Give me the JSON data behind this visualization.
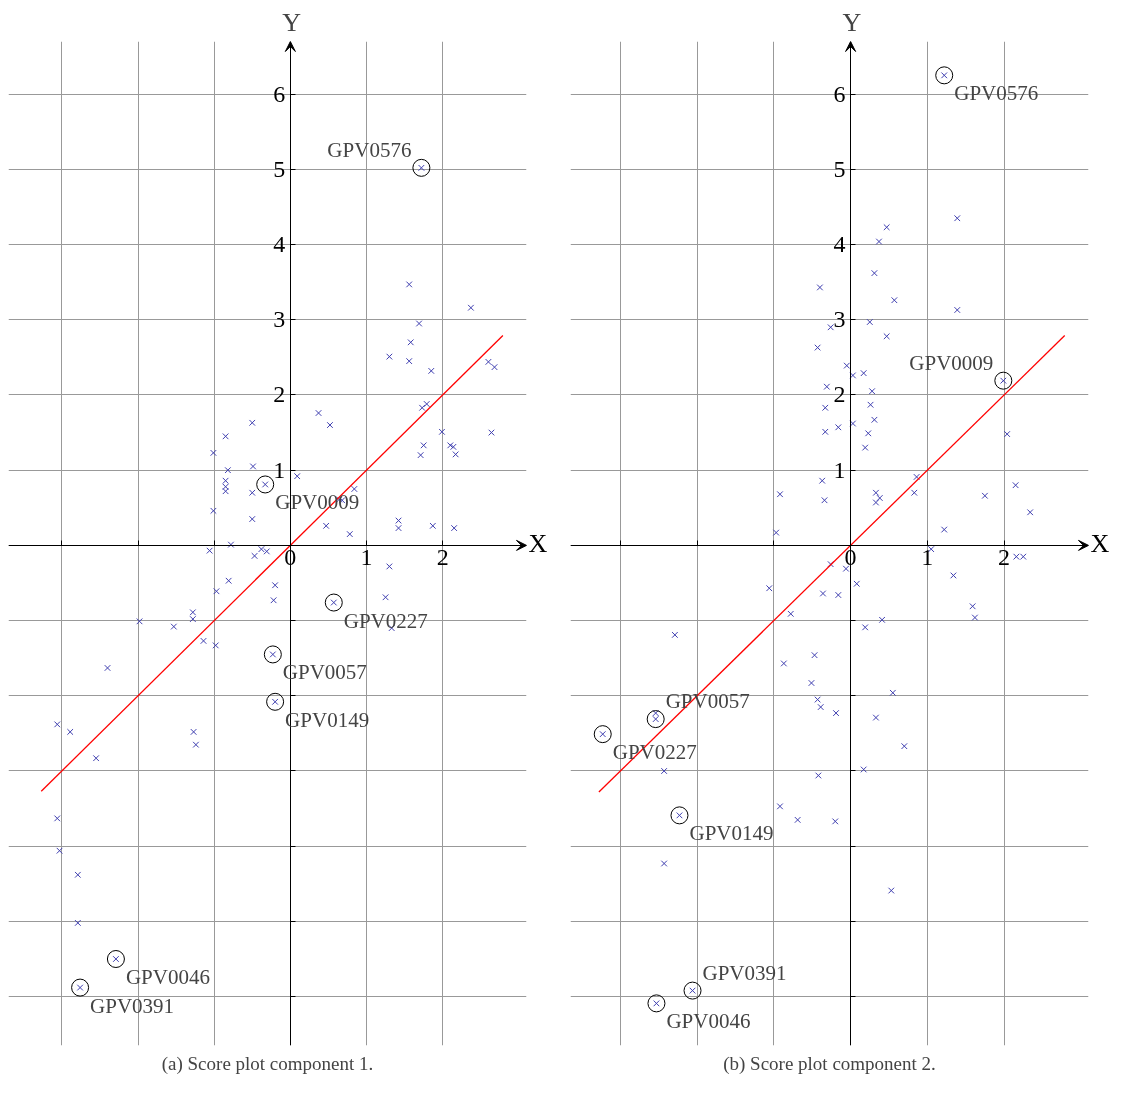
{
  "chart_data": [
    {
      "type": "scatter",
      "title": "(a) Score plot component 1.",
      "xlabel": "X",
      "ylabel": "Y",
      "xlim": [
        -3.7,
        3.1
      ],
      "ylim": [
        -6.65,
        6.7
      ],
      "xticks": [
        {
          "value": -3,
          "label": null
        },
        {
          "value": -2,
          "label": null
        },
        {
          "value": -1,
          "label": null
        },
        0,
        1,
        2
      ],
      "yticks": [
        {
          "value": -6,
          "label": null
        },
        {
          "value": -5,
          "label": null
        },
        {
          "value": -4,
          "label": null
        },
        {
          "value": -3,
          "label": null
        },
        {
          "value": -2,
          "label": null
        },
        {
          "value": -1,
          "label": null
        },
        {
          "value": 0,
          "label": null
        },
        1,
        2,
        3,
        4,
        5,
        6
      ],
      "grid": true,
      "marker": "cross",
      "series": [
        {
          "color": "#3f3fb0",
          "x": [
            1.56,
            2.37,
            1.69,
            1.58,
            1.3,
            1.56,
            1.85,
            2.6,
            2.68,
            1.73,
            1.79,
            0.37,
            0.52,
            1.99,
            2.64,
            1.75,
            1.71,
            2.1,
            2.14,
            2.17,
            -0.5,
            -0.85,
            -1.01,
            -0.49,
            -0.82,
            -0.85,
            -0.85,
            -0.85,
            -0.5,
            -0.33,
            0.09,
            0.84,
            0.64,
            0.68,
            -1.01,
            -0.5,
            0.47,
            0.78,
            1.42,
            1.42,
            1.87,
            2.15,
            -0.78,
            -1.06,
            -0.47,
            -0.38,
            -0.31,
            1.3,
            -0.81,
            -0.2,
            -0.97,
            -0.22,
            0.57,
            1.25,
            1.33,
            -1.98,
            -1.53,
            -1.28,
            -1.28,
            -1.14,
            -0.98,
            -2.4,
            -0.23,
            -0.2,
            -3.06,
            -2.89,
            -1.27,
            -1.24,
            -2.55,
            -3.06,
            -3.03,
            -2.79,
            -2.79,
            -2.29,
            -2.76,
            1.72
          ],
          "values": [
            3.47,
            3.16,
            2.95,
            2.7,
            2.51,
            2.45,
            2.32,
            2.44,
            2.37,
            1.83,
            1.88,
            1.76,
            1.6,
            1.51,
            1.5,
            1.33,
            1.2,
            1.33,
            1.31,
            1.21,
            1.63,
            1.45,
            1.23,
            1.05,
            1.0,
            0.86,
            0.78,
            0.72,
            0.7,
            0.81,
            0.92,
            0.75,
            0.61,
            0.6,
            0.46,
            0.35,
            0.26,
            0.15,
            0.33,
            0.23,
            0.26,
            0.23,
            0.01,
            -0.07,
            -0.14,
            -0.05,
            -0.08,
            -0.28,
            -0.47,
            -0.53,
            -0.61,
            -0.73,
            -0.76,
            -0.69,
            -1.1,
            -1.01,
            -1.08,
            -0.89,
            -0.98,
            -1.27,
            -1.33,
            -1.63,
            -1.45,
            -2.08,
            -2.38,
            -2.48,
            -2.48,
            -2.65,
            -2.83,
            -3.63,
            -4.06,
            -4.38,
            -5.02,
            -5.5,
            -5.88,
            5.02
          ]
        },
        {
          "type": "line",
          "color": "#ff0000",
          "marker": "none",
          "x": [
            -3.27,
            2.79
          ],
          "values": [
            -3.27,
            2.79
          ]
        }
      ],
      "annotations": [
        {
          "text": "GPV0576",
          "x": 1.72,
          "y": 5.02
        },
        {
          "text": "GPV0009",
          "x": -0.33,
          "y": 0.81
        },
        {
          "text": "GPV0227",
          "x": 0.57,
          "y": -0.76
        },
        {
          "text": "GPV0057",
          "x": -0.23,
          "y": -1.45
        },
        {
          "text": "GPV0149",
          "x": -0.2,
          "y": -2.08
        },
        {
          "text": "GPV0046",
          "x": -2.29,
          "y": -5.5
        },
        {
          "text": "GPV0391",
          "x": -2.76,
          "y": -5.88
        }
      ]
    },
    {
      "type": "scatter",
      "title": "(b) Score plot component 2.",
      "xlabel": "X",
      "ylabel": "Y",
      "xlim": [
        -3.65,
        3.1
      ],
      "ylim": [
        -6.65,
        6.7
      ],
      "xticks": [
        {
          "value": -3,
          "label": null
        },
        {
          "value": -2,
          "label": null
        },
        {
          "value": -1,
          "label": null
        },
        0,
        1,
        2
      ],
      "yticks": [
        {
          "value": -6,
          "label": null
        },
        {
          "value": -5,
          "label": null
        },
        {
          "value": -4,
          "label": null
        },
        {
          "value": -3,
          "label": null
        },
        {
          "value": -2,
          "label": null
        },
        {
          "value": -1,
          "label": null
        },
        {
          "value": 0,
          "label": null
        },
        1,
        2,
        3,
        4,
        5,
        6
      ],
      "grid": true,
      "marker": "cross",
      "series": [
        {
          "color": "#3f3fb0",
          "x": [
            1.39,
            0.47,
            0.37,
            0.31,
            -0.4,
            0.57,
            1.39,
            0.25,
            -0.26,
            0.47,
            -0.43,
            -0.05,
            0.03,
            0.17,
            1.99,
            0.28,
            -0.31,
            0.26,
            -0.33,
            0.31,
            0.03,
            -0.16,
            -0.33,
            0.23,
            2.04,
            0.19,
            0.86,
            -0.37,
            -0.92,
            0.33,
            0.38,
            0.33,
            0.83,
            -0.34,
            2.15,
            1.75,
            2.34,
            1.22,
            -0.97,
            1.05,
            2.16,
            2.25,
            -0.26,
            -0.06,
            0.08,
            1.34,
            -1.06,
            -0.36,
            -0.16,
            1.59,
            1.62,
            -0.78,
            0.19,
            0.41,
            -2.29,
            -0.87,
            -0.47,
            -0.51,
            0.55,
            -0.43,
            -0.39,
            -0.19,
            0.33,
            -2.54,
            -2.54,
            -3.23,
            0.7,
            0.17,
            -2.43,
            -0.42,
            -2.23,
            -0.92,
            -0.69,
            -0.2,
            -2.43,
            0.53,
            -2.06,
            -2.53,
            1.22
          ],
          "values": [
            4.35,
            4.23,
            4.04,
            3.62,
            3.43,
            3.26,
            3.13,
            2.97,
            2.9,
            2.78,
            2.63,
            2.39,
            2.26,
            2.29,
            2.19,
            2.05,
            2.11,
            1.87,
            1.83,
            1.67,
            1.62,
            1.57,
            1.51,
            1.49,
            1.48,
            1.3,
            0.91,
            0.86,
            0.68,
            0.7,
            0.63,
            0.57,
            0.7,
            0.6,
            0.8,
            0.66,
            0.44,
            0.21,
            0.17,
            -0.05,
            -0.15,
            -0.15,
            -0.25,
            -0.31,
            -0.51,
            -0.4,
            -0.57,
            -0.64,
            -0.66,
            -0.81,
            -0.96,
            -0.91,
            -1.09,
            -0.99,
            -1.19,
            -1.57,
            -1.46,
            -1.83,
            -1.96,
            -2.05,
            -2.15,
            -2.23,
            -2.29,
            -2.31,
            -2.23,
            -2.51,
            -2.67,
            -2.98,
            -3.0,
            -3.06,
            -3.59,
            -3.47,
            -3.65,
            -3.67,
            -4.23,
            -4.59,
            -5.92,
            -6.09,
            6.25
          ]
        },
        {
          "type": "line",
          "color": "#ff0000",
          "marker": "none",
          "x": [
            -3.28,
            2.79
          ],
          "values": [
            -3.28,
            2.79
          ]
        }
      ],
      "annotations": [
        {
          "text": "GPV0576",
          "x": 1.22,
          "y": 6.25
        },
        {
          "text": "GPV0009",
          "x": 1.99,
          "y": 2.19
        },
        {
          "text": "GPV0057",
          "x": -2.54,
          "y": -2.31
        },
        {
          "text": "GPV0227",
          "x": -3.23,
          "y": -2.51
        },
        {
          "text": "GPV0149",
          "x": -2.23,
          "y": -3.59
        },
        {
          "text": "GPV0391",
          "x": -2.06,
          "y": -5.92
        },
        {
          "text": "GPV0046",
          "x": -2.53,
          "y": -6.09
        }
      ]
    }
  ]
}
